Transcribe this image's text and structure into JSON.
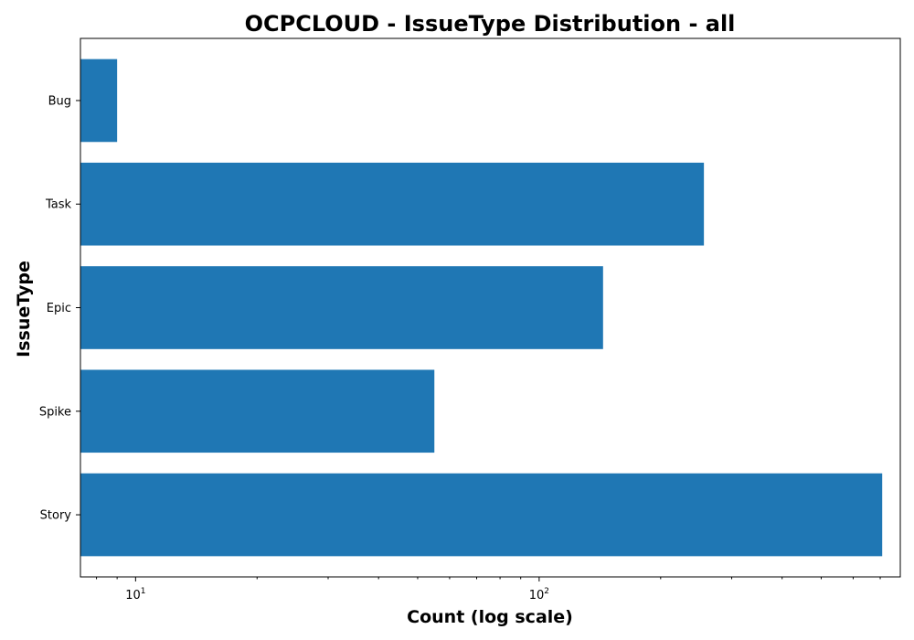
{
  "chart_data": {
    "type": "bar",
    "orientation": "horizontal",
    "title": "OCPCLOUD - IssueType Distribution - all",
    "xlabel": "Count (log scale)",
    "ylabel": "IssueType",
    "xscale": "log",
    "xlim": [
      7.3,
      785
    ],
    "x_tick_labels": [
      {
        "base": "10",
        "exp": "1",
        "value": 10
      },
      {
        "base": "10",
        "exp": "2",
        "value": 100
      }
    ],
    "categories": [
      "Bug",
      "Task",
      "Epic",
      "Spike",
      "Story"
    ],
    "values": [
      9,
      256,
      144,
      55,
      708
    ],
    "bar_color": "#1f77b4",
    "grid": false,
    "legend": "none"
  }
}
